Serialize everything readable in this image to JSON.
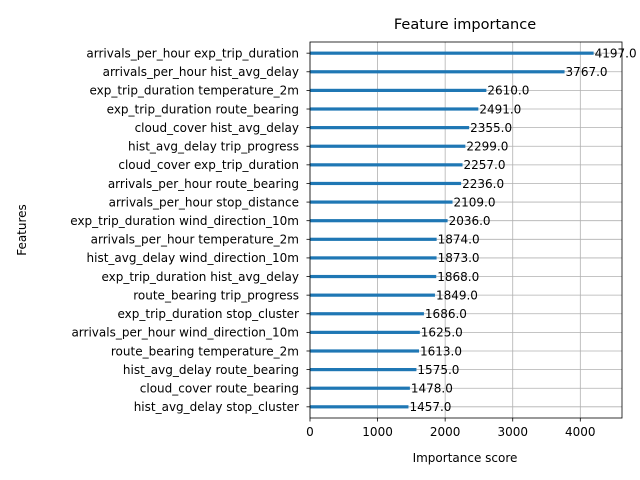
{
  "chart_data": {
    "type": "bar",
    "orientation": "horizontal",
    "title": "Feature importance",
    "xlabel": "Importance score",
    "ylabel": "Features",
    "xlim": [
      0,
      4617
    ],
    "xticks": [
      0,
      1000,
      2000,
      3000,
      4000
    ],
    "grid": true,
    "bar_color": "#1f77b4",
    "categories": [
      "arrivals_per_hour exp_trip_duration",
      "arrivals_per_hour hist_avg_delay",
      "exp_trip_duration temperature_2m",
      "exp_trip_duration route_bearing",
      "cloud_cover hist_avg_delay",
      "hist_avg_delay trip_progress",
      "cloud_cover exp_trip_duration",
      "arrivals_per_hour route_bearing",
      "arrivals_per_hour stop_distance",
      "exp_trip_duration wind_direction_10m",
      "arrivals_per_hour temperature_2m",
      "hist_avg_delay wind_direction_10m",
      "exp_trip_duration hist_avg_delay",
      "route_bearing trip_progress",
      "exp_trip_duration stop_cluster",
      "arrivals_per_hour wind_direction_10m",
      "route_bearing temperature_2m",
      "hist_avg_delay route_bearing",
      "cloud_cover route_bearing",
      "hist_avg_delay stop_cluster"
    ],
    "values": [
      4197,
      3767,
      2610,
      2491,
      2355,
      2299,
      2257,
      2236,
      2109,
      2036,
      1874,
      1873,
      1868,
      1849,
      1686,
      1625,
      1613,
      1575,
      1478,
      1457
    ],
    "value_labels": [
      "4197.0",
      "3767.0",
      "2610.0",
      "2491.0",
      "2355.0",
      "2299.0",
      "2257.0",
      "2236.0",
      "2109.0",
      "2036.0",
      "1874.0",
      "1873.0",
      "1868.0",
      "1849.0",
      "1686.0",
      "1625.0",
      "1613.0",
      "1575.0",
      "1478.0",
      "1457.0"
    ]
  }
}
